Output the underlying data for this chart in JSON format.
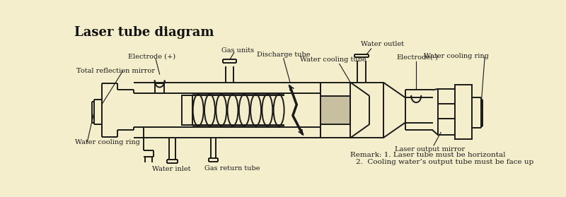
{
  "title": "Laser tube diagram",
  "bg_color": "#f5eecc",
  "line_color": "#1a1a1a",
  "title_color": "#111111",
  "remark_line1": "Remark: 1. Laser tube must be horizontal",
  "remark_line2": "2.  Cooling water’s output tube must be face up",
  "labels": {
    "electrode_plus": "Electrode (+)",
    "gas_units": "Gas units",
    "total_reflection": "Total reflection mirror",
    "water_cooling_ring_left": "Water cooling ring",
    "water_inlet": "Water inlet",
    "gas_return": "Gas return tube",
    "discharge_tube": "Discharge tube",
    "water_cooling_tube": "Water cooling tube",
    "water_outlet": "Water outlet",
    "electrode_minus": "Electrode(-)",
    "water_cooling_ring_right": "Water cooling ring",
    "laser_output": "Laser output mirror"
  }
}
